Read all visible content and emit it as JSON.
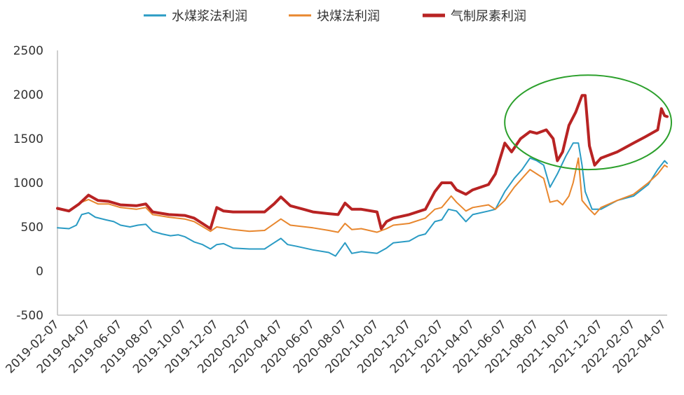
{
  "chart_data": {
    "type": "line",
    "title": "",
    "xlabel": "",
    "ylabel": "",
    "ylim": [
      -500,
      2500
    ],
    "yticks": [
      -500,
      0,
      500,
      1000,
      1500,
      2000,
      2500
    ],
    "ytick_labels": [
      "-500",
      "0",
      "500",
      "1000",
      "1500",
      "2000",
      "2500"
    ],
    "x_tick_labels": [
      "2019-02-07",
      "2019-04-07",
      "2019-06-07",
      "2019-08-07",
      "2019-10-07",
      "2019-12-07",
      "2020-02-07",
      "2020-04-07",
      "2020-06-07",
      "2020-08-07",
      "2020-10-07",
      "2020-12-07",
      "2021-02-07",
      "2021-04-07",
      "2021-06-07",
      "2021-08-07",
      "2021-10-07",
      "2021-12-07",
      "2022-02-07",
      "2022-04-07"
    ],
    "x_range": [
      "2019-02-07",
      "2022-04-12"
    ],
    "grid": false,
    "legend_position": "top",
    "annotation": {
      "shape": "ellipse",
      "color": "#2ca02c",
      "x_range": [
        "2021-06-07",
        "2022-04-20"
      ],
      "y_range": [
        1150,
        2220
      ]
    },
    "series": [
      {
        "name": "水煤浆法利润",
        "color": "#2a9bc4",
        "points": [
          [
            "2019-02-07",
            490
          ],
          [
            "2019-03-01",
            480
          ],
          [
            "2019-03-15",
            520
          ],
          [
            "2019-03-25",
            640
          ],
          [
            "2019-04-07",
            660
          ],
          [
            "2019-04-20",
            610
          ],
          [
            "2019-05-10",
            580
          ],
          [
            "2019-05-25",
            560
          ],
          [
            "2019-06-07",
            520
          ],
          [
            "2019-06-25",
            500
          ],
          [
            "2019-07-10",
            520
          ],
          [
            "2019-07-25",
            530
          ],
          [
            "2019-08-07",
            450
          ],
          [
            "2019-08-25",
            420
          ],
          [
            "2019-09-10",
            400
          ],
          [
            "2019-09-25",
            410
          ],
          [
            "2019-10-07",
            390
          ],
          [
            "2019-10-25",
            330
          ],
          [
            "2019-11-10",
            300
          ],
          [
            "2019-11-25",
            250
          ],
          [
            "2019-12-07",
            300
          ],
          [
            "2019-12-20",
            310
          ],
          [
            "2020-01-07",
            260
          ],
          [
            "2020-02-07",
            250
          ],
          [
            "2020-03-07",
            250
          ],
          [
            "2020-03-25",
            320
          ],
          [
            "2020-04-07",
            370
          ],
          [
            "2020-04-20",
            300
          ],
          [
            "2020-05-07",
            280
          ],
          [
            "2020-06-07",
            240
          ],
          [
            "2020-07-07",
            210
          ],
          [
            "2020-07-20",
            170
          ],
          [
            "2020-08-07",
            320
          ],
          [
            "2020-08-20",
            200
          ],
          [
            "2020-09-07",
            220
          ],
          [
            "2020-10-07",
            200
          ],
          [
            "2020-10-25",
            260
          ],
          [
            "2020-11-07",
            320
          ],
          [
            "2020-12-07",
            340
          ],
          [
            "2020-12-25",
            400
          ],
          [
            "2021-01-07",
            420
          ],
          [
            "2021-01-25",
            560
          ],
          [
            "2021-02-07",
            580
          ],
          [
            "2021-02-20",
            700
          ],
          [
            "2021-03-07",
            680
          ],
          [
            "2021-03-25",
            560
          ],
          [
            "2021-04-07",
            640
          ],
          [
            "2021-05-07",
            680
          ],
          [
            "2021-05-20",
            700
          ],
          [
            "2021-06-07",
            900
          ],
          [
            "2021-06-25",
            1050
          ],
          [
            "2021-07-10",
            1150
          ],
          [
            "2021-07-25",
            1280
          ],
          [
            "2021-08-07",
            1250
          ],
          [
            "2021-08-20",
            1200
          ],
          [
            "2021-09-01",
            950
          ],
          [
            "2021-09-15",
            1100
          ],
          [
            "2021-10-01",
            1300
          ],
          [
            "2021-10-15",
            1450
          ],
          [
            "2021-10-25",
            1450
          ],
          [
            "2021-11-01",
            1200
          ],
          [
            "2021-11-07",
            900
          ],
          [
            "2021-11-20",
            700
          ],
          [
            "2021-12-07",
            700
          ],
          [
            "2022-01-07",
            800
          ],
          [
            "2022-02-07",
            850
          ],
          [
            "2022-03-07",
            980
          ],
          [
            "2022-03-25",
            1150
          ],
          [
            "2022-04-07",
            1250
          ],
          [
            "2022-04-12",
            1220
          ]
        ]
      },
      {
        "name": "块煤法利润",
        "color": "#e8872e",
        "points": [
          [
            "2019-02-07",
            700
          ],
          [
            "2019-03-01",
            690
          ],
          [
            "2019-03-25",
            780
          ],
          [
            "2019-04-07",
            810
          ],
          [
            "2019-04-25",
            760
          ],
          [
            "2019-05-15",
            760
          ],
          [
            "2019-06-07",
            720
          ],
          [
            "2019-07-07",
            700
          ],
          [
            "2019-07-25",
            720
          ],
          [
            "2019-08-07",
            640
          ],
          [
            "2019-09-07",
            610
          ],
          [
            "2019-10-07",
            590
          ],
          [
            "2019-10-25",
            560
          ],
          [
            "2019-11-25",
            450
          ],
          [
            "2019-12-07",
            500
          ],
          [
            "2020-01-07",
            470
          ],
          [
            "2020-02-07",
            450
          ],
          [
            "2020-03-07",
            460
          ],
          [
            "2020-04-07",
            590
          ],
          [
            "2020-04-25",
            520
          ],
          [
            "2020-06-07",
            490
          ],
          [
            "2020-07-07",
            460
          ],
          [
            "2020-07-25",
            440
          ],
          [
            "2020-08-07",
            540
          ],
          [
            "2020-08-20",
            470
          ],
          [
            "2020-09-07",
            480
          ],
          [
            "2020-10-07",
            440
          ],
          [
            "2020-10-25",
            480
          ],
          [
            "2020-11-07",
            520
          ],
          [
            "2020-12-07",
            540
          ],
          [
            "2021-01-07",
            600
          ],
          [
            "2021-01-25",
            700
          ],
          [
            "2021-02-07",
            720
          ],
          [
            "2021-02-25",
            850
          ],
          [
            "2021-03-07",
            780
          ],
          [
            "2021-03-25",
            680
          ],
          [
            "2021-04-07",
            720
          ],
          [
            "2021-05-07",
            750
          ],
          [
            "2021-05-20",
            700
          ],
          [
            "2021-06-07",
            800
          ],
          [
            "2021-06-25",
            950
          ],
          [
            "2021-07-10",
            1050
          ],
          [
            "2021-07-25",
            1150
          ],
          [
            "2021-08-07",
            1100
          ],
          [
            "2021-08-20",
            1050
          ],
          [
            "2021-09-01",
            780
          ],
          [
            "2021-09-15",
            800
          ],
          [
            "2021-09-25",
            750
          ],
          [
            "2021-10-07",
            850
          ],
          [
            "2021-10-15",
            1000
          ],
          [
            "2021-10-25",
            1280
          ],
          [
            "2021-11-01",
            800
          ],
          [
            "2021-11-15",
            700
          ],
          [
            "2021-11-25",
            640
          ],
          [
            "2021-12-07",
            720
          ],
          [
            "2022-01-07",
            800
          ],
          [
            "2022-02-07",
            870
          ],
          [
            "2022-03-07",
            1000
          ],
          [
            "2022-03-25",
            1100
          ],
          [
            "2022-04-07",
            1200
          ],
          [
            "2022-04-12",
            1180
          ]
        ]
      },
      {
        "name": "气制尿素利润",
        "color": "#b82323",
        "points": [
          [
            "2019-02-07",
            710
          ],
          [
            "2019-03-01",
            680
          ],
          [
            "2019-03-20",
            760
          ],
          [
            "2019-04-07",
            860
          ],
          [
            "2019-04-25",
            800
          ],
          [
            "2019-05-15",
            790
          ],
          [
            "2019-06-07",
            750
          ],
          [
            "2019-07-07",
            740
          ],
          [
            "2019-07-25",
            760
          ],
          [
            "2019-08-07",
            670
          ],
          [
            "2019-09-07",
            640
          ],
          [
            "2019-10-07",
            630
          ],
          [
            "2019-10-25",
            600
          ],
          [
            "2019-11-25",
            480
          ],
          [
            "2019-12-07",
            720
          ],
          [
            "2019-12-20",
            680
          ],
          [
            "2020-01-07",
            670
          ],
          [
            "2020-02-07",
            670
          ],
          [
            "2020-03-07",
            670
          ],
          [
            "2020-03-25",
            760
          ],
          [
            "2020-04-07",
            840
          ],
          [
            "2020-04-25",
            740
          ],
          [
            "2020-05-20",
            700
          ],
          [
            "2020-06-07",
            670
          ],
          [
            "2020-07-07",
            650
          ],
          [
            "2020-07-25",
            640
          ],
          [
            "2020-08-07",
            770
          ],
          [
            "2020-08-20",
            700
          ],
          [
            "2020-09-07",
            700
          ],
          [
            "2020-10-07",
            670
          ],
          [
            "2020-10-15",
            480
          ],
          [
            "2020-10-25",
            560
          ],
          [
            "2020-11-07",
            600
          ],
          [
            "2020-12-07",
            640
          ],
          [
            "2021-01-07",
            700
          ],
          [
            "2021-01-25",
            900
          ],
          [
            "2021-02-07",
            1000
          ],
          [
            "2021-02-25",
            1000
          ],
          [
            "2021-03-07",
            920
          ],
          [
            "2021-03-25",
            870
          ],
          [
            "2021-04-07",
            920
          ],
          [
            "2021-05-07",
            980
          ],
          [
            "2021-05-20",
            1100
          ],
          [
            "2021-06-07",
            1450
          ],
          [
            "2021-06-20",
            1350
          ],
          [
            "2021-07-07",
            1500
          ],
          [
            "2021-07-25",
            1580
          ],
          [
            "2021-08-07",
            1560
          ],
          [
            "2021-08-25",
            1600
          ],
          [
            "2021-09-07",
            1500
          ],
          [
            "2021-09-15",
            1250
          ],
          [
            "2021-09-25",
            1350
          ],
          [
            "2021-10-07",
            1650
          ],
          [
            "2021-10-20",
            1800
          ],
          [
            "2021-11-01",
            1990
          ],
          [
            "2021-11-07",
            1990
          ],
          [
            "2021-11-15",
            1420
          ],
          [
            "2021-11-25",
            1200
          ],
          [
            "2021-12-07",
            1280
          ],
          [
            "2022-01-07",
            1350
          ],
          [
            "2022-02-07",
            1450
          ],
          [
            "2022-03-01",
            1520
          ],
          [
            "2022-03-25",
            1600
          ],
          [
            "2022-04-01",
            1840
          ],
          [
            "2022-04-07",
            1760
          ],
          [
            "2022-04-12",
            1750
          ]
        ]
      }
    ]
  }
}
